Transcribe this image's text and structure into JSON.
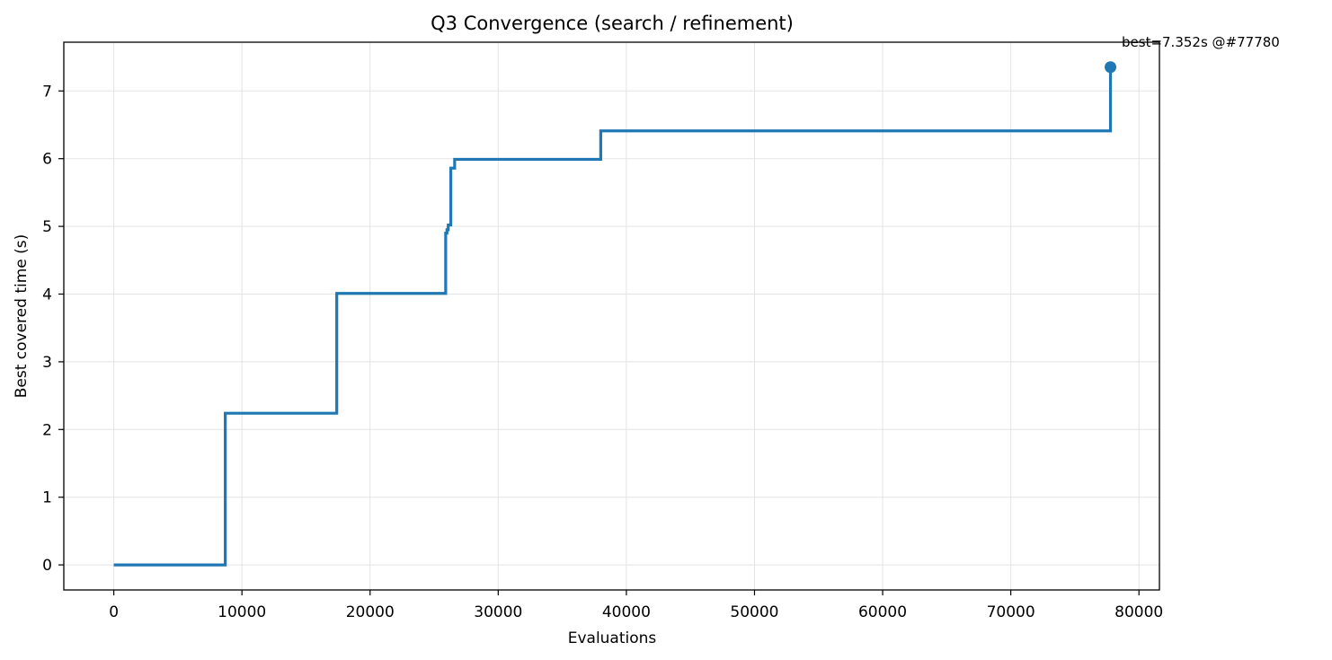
{
  "chart_data": {
    "type": "line",
    "title": "Q3 Convergence (search / refinement)",
    "xlabel": "Evaluations",
    "ylabel": "Best covered time (s)",
    "xlim": [
      -3900,
      81600
    ],
    "ylim": [
      -0.37,
      7.72
    ],
    "x_ticks": [
      0,
      10000,
      20000,
      30000,
      40000,
      50000,
      60000,
      70000,
      80000
    ],
    "y_ticks": [
      0,
      1,
      2,
      3,
      4,
      5,
      6,
      7
    ],
    "grid": true,
    "series": [
      {
        "name": "",
        "color": "#1f77b4",
        "step": "post",
        "x": [
          0,
          8700,
          17400,
          25900,
          26000,
          26100,
          26300,
          26600,
          38000,
          77780
        ],
        "y": [
          0,
          2.24,
          4.01,
          4.9,
          4.95,
          5.02,
          5.86,
          5.99,
          6.41,
          7.352
        ]
      }
    ],
    "best_point": {
      "x": 77780,
      "y": 7.352,
      "color": "#1f77b4"
    },
    "annotation": "best=7.352s @#77780"
  }
}
